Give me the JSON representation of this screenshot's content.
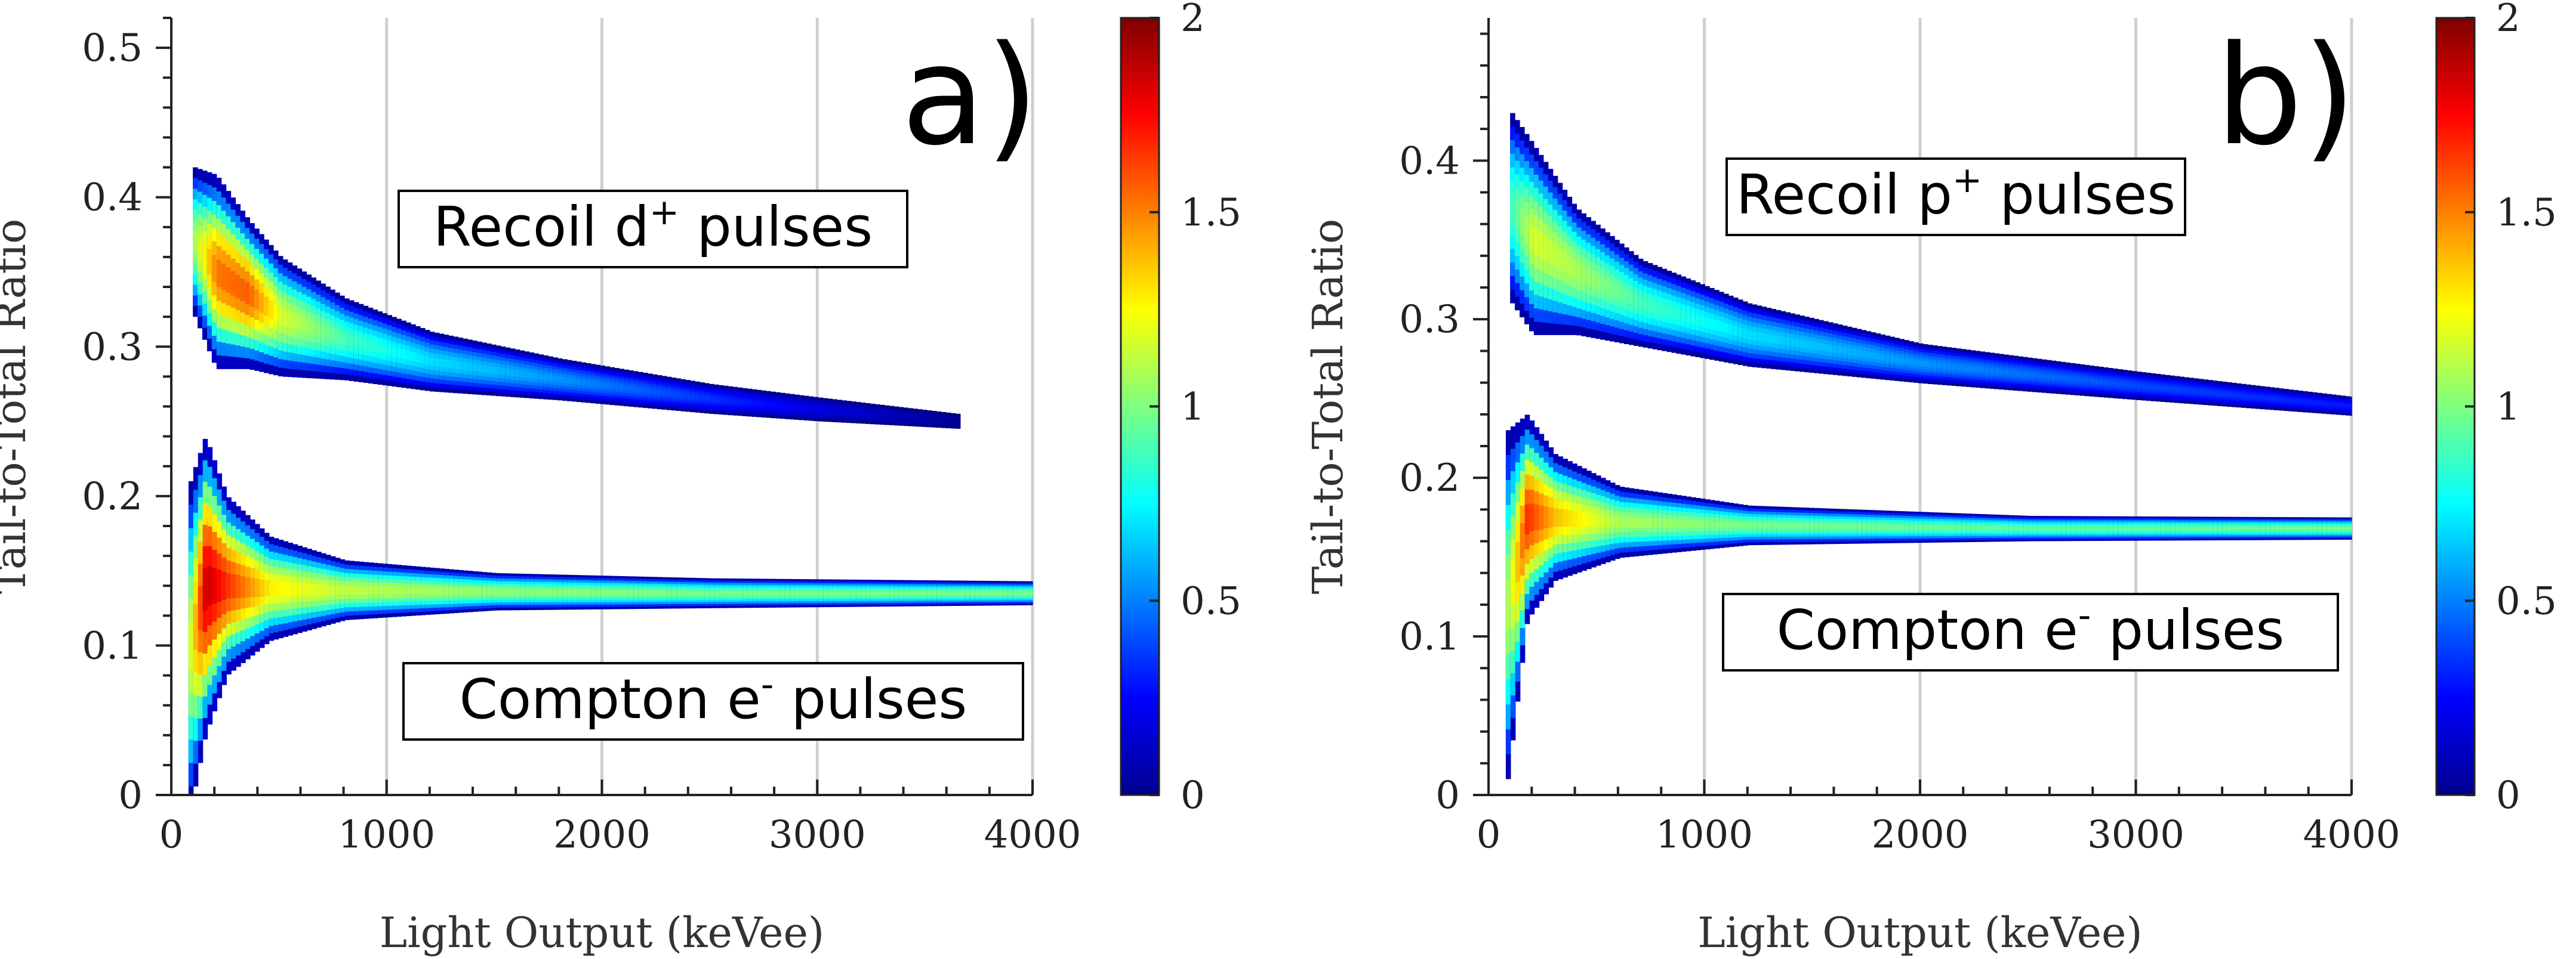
{
  "chart_data": [
    {
      "type": "heatmap",
      "panel_label": "a)",
      "xlabel": "Light Output (keVee)",
      "ylabel": "Tail-to-Total Ratio",
      "xlim": [
        0,
        4000
      ],
      "ylim": [
        0,
        0.52
      ],
      "xticks": [
        0,
        1000,
        2000,
        3000,
        4000
      ],
      "xtick_labels": [
        "0",
        "1000",
        "2000",
        "3000",
        "4000"
      ],
      "yticks": [
        0,
        0.1,
        0.2,
        0.3,
        0.4,
        0.5
      ],
      "ytick_labels": [
        "0",
        "0.1",
        "0.2",
        "0.3",
        "0.4",
        "0.5"
      ],
      "grid": "vertical",
      "colorbar": {
        "min": 0,
        "max": 2,
        "ticks": [
          0,
          0.5,
          1,
          1.5,
          2
        ],
        "tick_labels": [
          "0",
          "0.5",
          "1",
          "1.5",
          "2"
        ],
        "colormap": "jet"
      },
      "annotations": [
        {
          "text": "Recoil d",
          "sup": "+",
          "suffix": " pulses"
        },
        {
          "text": "Compton e",
          "sup": "-",
          "suffix": " pulses"
        }
      ],
      "bands": [
        {
          "name": "Recoil d+",
          "points": [
            {
              "x": 100,
              "y": 0.37,
              "width": 0.1,
              "z": 1.1
            },
            {
              "x": 200,
              "y": 0.35,
              "width": 0.13,
              "z": 1.55
            },
            {
              "x": 350,
              "y": 0.335,
              "width": 0.1,
              "z": 1.6
            },
            {
              "x": 500,
              "y": 0.32,
              "width": 0.08,
              "z": 1.2
            },
            {
              "x": 800,
              "y": 0.305,
              "width": 0.055,
              "z": 0.9
            },
            {
              "x": 1200,
              "y": 0.29,
              "width": 0.04,
              "z": 0.7
            },
            {
              "x": 1800,
              "y": 0.278,
              "width": 0.028,
              "z": 0.55
            },
            {
              "x": 2500,
              "y": 0.265,
              "width": 0.02,
              "z": 0.35
            },
            {
              "x": 3000,
              "y": 0.258,
              "width": 0.016,
              "z": 0.2
            },
            {
              "x": 3650,
              "y": 0.25,
              "width": 0.01,
              "z": 0.05
            }
          ]
        },
        {
          "name": "Compton e-",
          "points": [
            {
              "x": 80,
              "y": 0.1,
              "width": 0.22,
              "z": 1.2
            },
            {
              "x": 150,
              "y": 0.14,
              "width": 0.2,
              "z": 1.9
            },
            {
              "x": 250,
              "y": 0.14,
              "width": 0.12,
              "z": 1.7
            },
            {
              "x": 450,
              "y": 0.138,
              "width": 0.07,
              "z": 1.3
            },
            {
              "x": 800,
              "y": 0.137,
              "width": 0.04,
              "z": 1.15
            },
            {
              "x": 1500,
              "y": 0.136,
              "width": 0.025,
              "z": 1.05
            },
            {
              "x": 2500,
              "y": 0.135,
              "width": 0.02,
              "z": 1.0
            },
            {
              "x": 4000,
              "y": 0.135,
              "width": 0.016,
              "z": 1.0
            }
          ]
        }
      ]
    },
    {
      "type": "heatmap",
      "panel_label": "b)",
      "xlabel": "Light Output (keVee)",
      "ylabel": "Tail-to-Total Ratio",
      "xlim": [
        0,
        4000
      ],
      "ylim": [
        0,
        0.49
      ],
      "xticks": [
        0,
        1000,
        2000,
        3000,
        4000
      ],
      "xtick_labels": [
        "0",
        "1000",
        "2000",
        "3000",
        "4000"
      ],
      "yticks": [
        0,
        0.1,
        0.2,
        0.3,
        0.4
      ],
      "ytick_labels": [
        "0",
        "0.1",
        "0.2",
        "0.3",
        "0.4"
      ],
      "grid": "vertical",
      "colorbar": {
        "min": 0,
        "max": 2,
        "ticks": [
          0,
          0.5,
          1,
          1.5,
          2
        ],
        "tick_labels": [
          "0",
          "0.5",
          "1",
          "1.5",
          "2"
        ],
        "colormap": "jet"
      },
      "annotations": [
        {
          "text": "Recoil p",
          "sup": "+",
          "suffix": " pulses"
        },
        {
          "text": "Compton e",
          "sup": "-",
          "suffix": " pulses"
        }
      ],
      "bands": [
        {
          "name": "Recoil p+",
          "points": [
            {
              "x": 100,
              "y": 0.37,
              "width": 0.12,
              "z": 0.9
            },
            {
              "x": 200,
              "y": 0.35,
              "width": 0.12,
              "z": 1.2
            },
            {
              "x": 400,
              "y": 0.33,
              "width": 0.08,
              "z": 1.1
            },
            {
              "x": 700,
              "y": 0.31,
              "width": 0.055,
              "z": 0.9
            },
            {
              "x": 1200,
              "y": 0.29,
              "width": 0.04,
              "z": 0.7
            },
            {
              "x": 2000,
              "y": 0.272,
              "width": 0.025,
              "z": 0.55
            },
            {
              "x": 3000,
              "y": 0.258,
              "width": 0.018,
              "z": 0.4
            },
            {
              "x": 4000,
              "y": 0.245,
              "width": 0.012,
              "z": 0.3
            }
          ]
        },
        {
          "name": "Compton e-",
          "points": [
            {
              "x": 80,
              "y": 0.12,
              "width": 0.22,
              "z": 1.1
            },
            {
              "x": 170,
              "y": 0.175,
              "width": 0.13,
              "z": 1.7
            },
            {
              "x": 300,
              "y": 0.175,
              "width": 0.08,
              "z": 1.4
            },
            {
              "x": 600,
              "y": 0.172,
              "width": 0.045,
              "z": 1.1
            },
            {
              "x": 1200,
              "y": 0.17,
              "width": 0.025,
              "z": 1.0
            },
            {
              "x": 2500,
              "y": 0.168,
              "width": 0.016,
              "z": 0.95
            },
            {
              "x": 4000,
              "y": 0.168,
              "width": 0.014,
              "z": 1.0
            }
          ]
        }
      ]
    }
  ]
}
